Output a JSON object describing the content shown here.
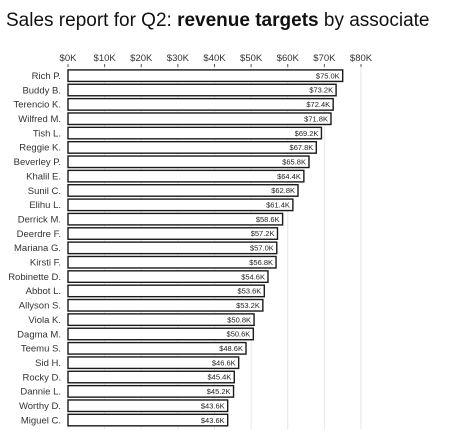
{
  "title": {
    "prefix": "Sales report for Q2: ",
    "emphasis": "revenue targets",
    "suffix": " by associate"
  },
  "chart_data": {
    "type": "bar",
    "orientation": "horizontal",
    "title": "Sales report for Q2: revenue targets by associate",
    "xlabel": "",
    "ylabel": "",
    "xlim": [
      0,
      80000
    ],
    "x_ticks": [
      0,
      10000,
      20000,
      30000,
      40000,
      50000,
      60000,
      70000,
      80000
    ],
    "x_tick_labels": [
      "$0K",
      "$10K",
      "$20K",
      "$30K",
      "$40K",
      "$50K",
      "$60K",
      "$70K",
      "$80K"
    ],
    "x_axis_position": "top",
    "grid": true,
    "categories": [
      "Rich P.",
      "Buddy B.",
      "Terencio K.",
      "Wilfred M.",
      "Tish L.",
      "Reggie K.",
      "Beverley P.",
      "Khalil E.",
      "Sunil C.",
      "Elihu L.",
      "Derrick M.",
      "Deerdre F.",
      "Mariana G.",
      "Kirsti F.",
      "Robinette D.",
      "Abbot L.",
      "Allyson S.",
      "Viola K.",
      "Dagma M.",
      "Teemu S.",
      "Sid H.",
      "Rocky D.",
      "Dannie L.",
      "Worthy D.",
      "Miguel C."
    ],
    "values": [
      75000,
      73200,
      72400,
      71800,
      69200,
      67800,
      65800,
      64400,
      62800,
      61400,
      58600,
      57200,
      57000,
      56800,
      54600,
      53600,
      53200,
      50800,
      50600,
      48600,
      46600,
      45400,
      45200,
      43600,
      43600
    ],
    "data_labels": [
      "$75.0K",
      "$73.2K",
      "$72.4K",
      "$71.8K",
      "$69.2K",
      "$67.8K",
      "$65.8K",
      "$64.4K",
      "$62.8K",
      "$61.4K",
      "$58.6K",
      "$57.2K",
      "$57.0K",
      "$56.8K",
      "$54.6K",
      "$53.6K",
      "$53.2K",
      "$50.8K",
      "$50.6K",
      "$48.6K",
      "$46.6K",
      "$45.4K",
      "$45.2K",
      "$43.6K",
      "$43.6K"
    ]
  }
}
